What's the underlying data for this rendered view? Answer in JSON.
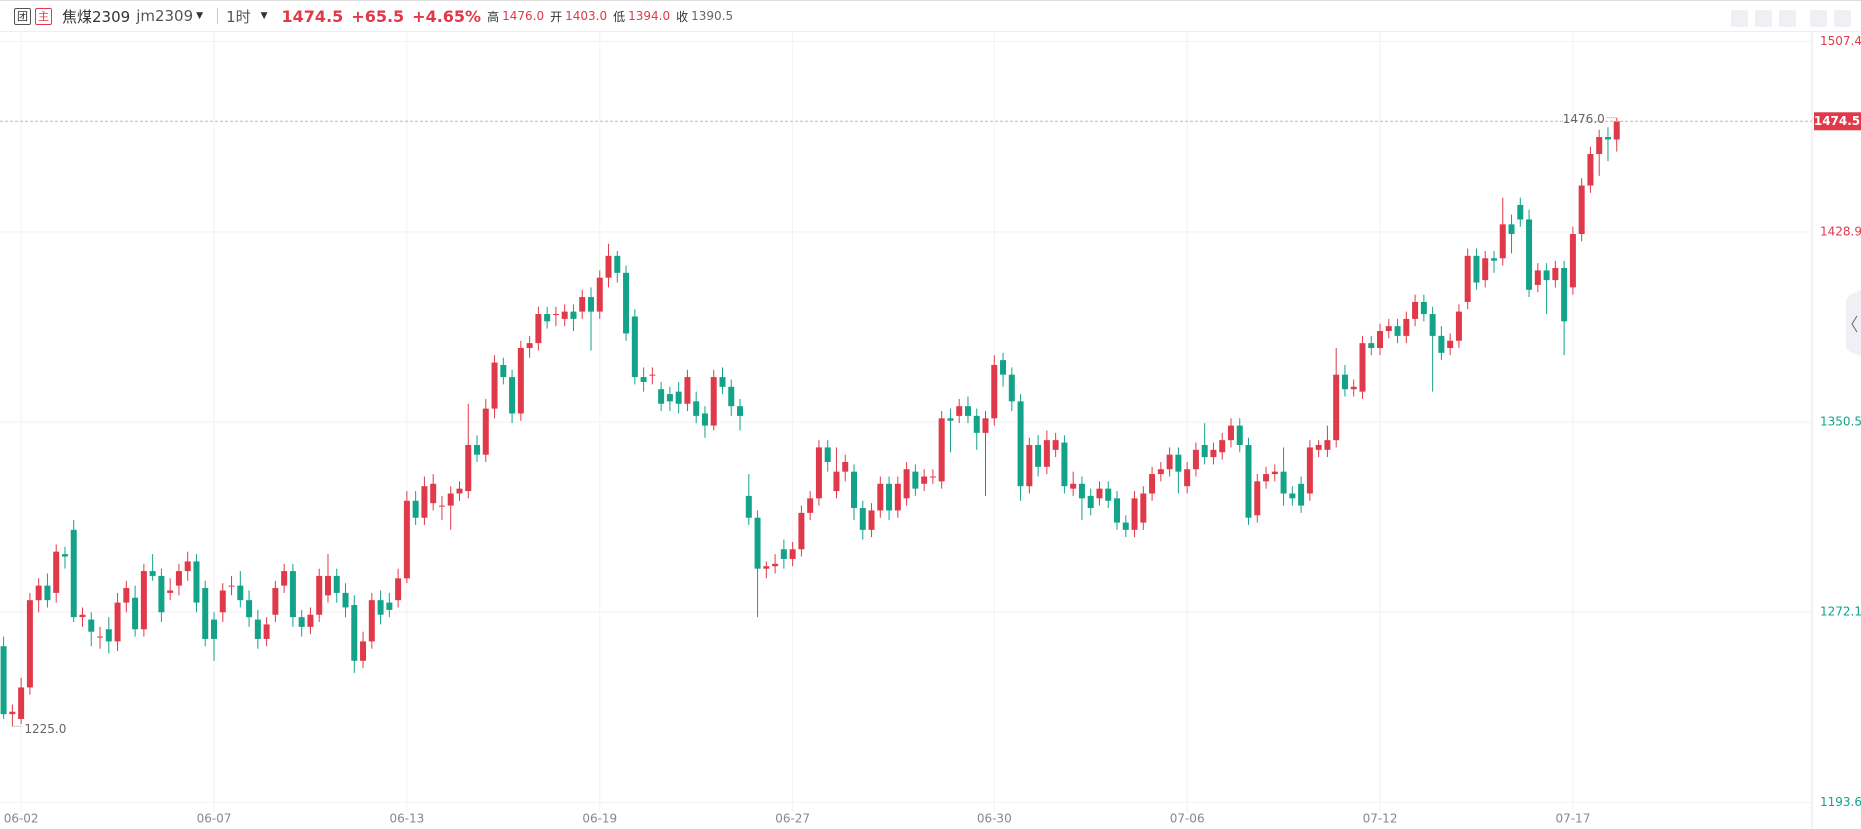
{
  "header": {
    "icon_group": "团",
    "icon_main": "主",
    "name": "焦煤2309",
    "code": "jm2309",
    "period": "1时",
    "price": "1474.5",
    "change": "+65.5",
    "pct": "+4.65%",
    "high_label": "高",
    "high": "1476.0",
    "open_label": "开",
    "open": "1403.0",
    "low_label": "低",
    "low": "1394.0",
    "close_label": "收",
    "close": "1390.5"
  },
  "chart_data": {
    "type": "candlestick",
    "up_color": "#e0394a",
    "down_color": "#13a388",
    "ylim": [
      1193.6,
      1507.4
    ],
    "yticks": [
      1507.4,
      1428.9,
      1350.5,
      1272.1,
      1193.6
    ],
    "ytick_colors": [
      "#e0394a",
      "#e0394a",
      "#13a388",
      "#13a388",
      "#13a388"
    ],
    "grid": true,
    "last_price": 1474.5,
    "max_marker": {
      "value": 1476,
      "label": "1476.0"
    },
    "min_marker": {
      "value": 1225,
      "label": "1225.0"
    },
    "categories": [
      null,
      null,
      "06-02",
      null,
      null,
      null,
      null,
      null,
      null,
      null,
      null,
      null,
      null,
      null,
      null,
      null,
      null,
      null,
      null,
      null,
      null,
      null,
      null,
      null,
      "06-07",
      null,
      null,
      null,
      null,
      null,
      null,
      null,
      null,
      null,
      null,
      null,
      null,
      null,
      null,
      null,
      null,
      null,
      null,
      null,
      null,
      null,
      "06-13",
      null,
      null,
      null,
      null,
      null,
      null,
      null,
      null,
      null,
      null,
      null,
      null,
      null,
      null,
      null,
      null,
      null,
      null,
      null,
      null,
      null,
      "06-19",
      null,
      null,
      null,
      null,
      null,
      null,
      null,
      null,
      null,
      null,
      null,
      null,
      null,
      null,
      null,
      null,
      null,
      null,
      null,
      null,
      null,
      "06-27",
      null,
      null,
      null,
      null,
      null,
      null,
      null,
      null,
      null,
      null,
      null,
      null,
      null,
      null,
      null,
      null,
      null,
      null,
      null,
      null,
      null,
      null,
      "06-30",
      null,
      null,
      null,
      null,
      null,
      null,
      null,
      null,
      null,
      null,
      null,
      null,
      null,
      null,
      null,
      null,
      null,
      null,
      null,
      null,
      null,
      "07-06",
      null,
      null,
      null,
      null,
      null,
      null,
      null,
      null,
      null,
      null,
      null,
      null,
      null,
      null,
      null,
      null,
      null,
      null,
      null,
      null,
      null,
      "07-12",
      null,
      null,
      null,
      null,
      null,
      null,
      null,
      null,
      null,
      null,
      null,
      null,
      null,
      null,
      null,
      null,
      null,
      null,
      null,
      null,
      null,
      "07-17",
      null,
      null,
      null,
      null,
      null
    ],
    "ohlc": [
      [
        1258,
        1262,
        1228,
        1230
      ],
      [
        1230,
        1234,
        1225,
        1231
      ],
      [
        1228,
        1245,
        1226,
        1241
      ],
      [
        1241,
        1280,
        1238,
        1277
      ],
      [
        1277,
        1286,
        1272,
        1283
      ],
      [
        1283,
        1288,
        1274,
        1277
      ],
      [
        1280,
        1300,
        1276,
        1297
      ],
      [
        1296,
        1299,
        1290,
        1295
      ],
      [
        1306,
        1310,
        1268,
        1270
      ],
      [
        1270,
        1274,
        1266,
        1271
      ],
      [
        1269,
        1272,
        1258,
        1264
      ],
      [
        1262,
        1266,
        1257,
        1262
      ],
      [
        1265,
        1270,
        1255,
        1260
      ],
      [
        1260,
        1280,
        1256,
        1276
      ],
      [
        1276,
        1285,
        1272,
        1282
      ],
      [
        1278,
        1283,
        1262,
        1265
      ],
      [
        1265,
        1292,
        1262,
        1289
      ],
      [
        1289,
        1296,
        1285,
        1287
      ],
      [
        1287,
        1290,
        1268,
        1272
      ],
      [
        1280,
        1286,
        1277,
        1281
      ],
      [
        1283,
        1292,
        1279,
        1289
      ],
      [
        1289,
        1297,
        1285,
        1293
      ],
      [
        1293,
        1296,
        1272,
        1276
      ],
      [
        1282,
        1285,
        1258,
        1261
      ],
      [
        1269,
        1272,
        1252,
        1261
      ],
      [
        1272,
        1284,
        1268,
        1281
      ],
      [
        1283,
        1287,
        1279,
        1283
      ],
      [
        1283,
        1289,
        1274,
        1277
      ],
      [
        1277,
        1281,
        1266,
        1270
      ],
      [
        1269,
        1273,
        1257,
        1261
      ],
      [
        1261,
        1270,
        1258,
        1267
      ],
      [
        1271,
        1285,
        1268,
        1282
      ],
      [
        1283,
        1292,
        1280,
        1289
      ],
      [
        1289,
        1292,
        1266,
        1270
      ],
      [
        1270,
        1273,
        1262,
        1266
      ],
      [
        1266,
        1274,
        1263,
        1271
      ],
      [
        1271,
        1290,
        1268,
        1287
      ],
      [
        1279,
        1296,
        1276,
        1287
      ],
      [
        1287,
        1290,
        1276,
        1280
      ],
      [
        1280,
        1284,
        1270,
        1274
      ],
      [
        1275,
        1279,
        1247,
        1252
      ],
      [
        1252,
        1264,
        1249,
        1260
      ],
      [
        1260,
        1280,
        1257,
        1277
      ],
      [
        1277,
        1281,
        1267,
        1271
      ],
      [
        1276,
        1280,
        1270,
        1273
      ],
      [
        1277,
        1290,
        1274,
        1286
      ],
      [
        1286,
        1322,
        1284,
        1318
      ],
      [
        1318,
        1322,
        1308,
        1311
      ],
      [
        1311,
        1328,
        1308,
        1324
      ],
      [
        1317,
        1329,
        1314,
        1325
      ],
      [
        1316,
        1320,
        1310,
        1316
      ],
      [
        1316,
        1324,
        1306,
        1321
      ],
      [
        1321,
        1326,
        1318,
        1323
      ],
      [
        1322,
        1358,
        1319,
        1341
      ],
      [
        1341,
        1345,
        1334,
        1337
      ],
      [
        1337,
        1360,
        1334,
        1356
      ],
      [
        1356,
        1378,
        1352,
        1375
      ],
      [
        1374,
        1377,
        1366,
        1369
      ],
      [
        1369,
        1372,
        1350,
        1354
      ],
      [
        1354,
        1384,
        1351,
        1381
      ],
      [
        1381,
        1386,
        1377,
        1383
      ],
      [
        1383,
        1398,
        1380,
        1395
      ],
      [
        1395,
        1398,
        1389,
        1392
      ],
      [
        1395,
        1398,
        1390,
        1395
      ],
      [
        1393,
        1399,
        1390,
        1396
      ],
      [
        1396,
        1399,
        1388,
        1393
      ],
      [
        1396,
        1405,
        1393,
        1402
      ],
      [
        1402,
        1406,
        1380,
        1396
      ],
      [
        1396,
        1413,
        1393,
        1410
      ],
      [
        1410,
        1424,
        1406,
        1419
      ],
      [
        1419,
        1421,
        1408,
        1412
      ],
      [
        1412,
        1415,
        1384,
        1387
      ],
      [
        1394,
        1397,
        1366,
        1369
      ],
      [
        1369,
        1373,
        1363,
        1367
      ],
      [
        1370,
        1373,
        1366,
        1370
      ],
      [
        1364,
        1367,
        1355,
        1358
      ],
      [
        1362,
        1365,
        1355,
        1359
      ],
      [
        1363,
        1367,
        1354,
        1358
      ],
      [
        1358,
        1372,
        1355,
        1369
      ],
      [
        1359,
        1363,
        1350,
        1353
      ],
      [
        1354,
        1357,
        1344,
        1349
      ],
      [
        1349,
        1372,
        1347,
        1369
      ],
      [
        1369,
        1373,
        1362,
        1365
      ],
      [
        1365,
        1368,
        1353,
        1357
      ],
      [
        1357,
        1360,
        1347,
        1353
      ],
      [
        1320,
        1329,
        1308,
        1311
      ],
      [
        1311,
        1314,
        1270,
        1290
      ],
      [
        1290,
        1293,
        1286,
        1291
      ],
      [
        1291,
        1296,
        1288,
        1292
      ],
      [
        1298,
        1302,
        1290,
        1294
      ],
      [
        1294,
        1301,
        1291,
        1298
      ],
      [
        1298,
        1316,
        1295,
        1313
      ],
      [
        1313,
        1322,
        1310,
        1319
      ],
      [
        1319,
        1343,
        1316,
        1340
      ],
      [
        1340,
        1343,
        1330,
        1334
      ],
      [
        1322,
        1340,
        1319,
        1330
      ],
      [
        1330,
        1337,
        1326,
        1334
      ],
      [
        1330,
        1333,
        1310,
        1315
      ],
      [
        1315,
        1318,
        1302,
        1306
      ],
      [
        1306,
        1317,
        1303,
        1314
      ],
      [
        1314,
        1328,
        1311,
        1325
      ],
      [
        1325,
        1328,
        1310,
        1314
      ],
      [
        1314,
        1328,
        1311,
        1325
      ],
      [
        1319,
        1334,
        1316,
        1331
      ],
      [
        1330,
        1333,
        1320,
        1323
      ],
      [
        1325,
        1331,
        1322,
        1328
      ],
      [
        1328,
        1331,
        1325,
        1328
      ],
      [
        1326,
        1355,
        1323,
        1352
      ],
      [
        1352,
        1356,
        1338,
        1351
      ],
      [
        1353,
        1360,
        1350,
        1357
      ],
      [
        1357,
        1361,
        1350,
        1353
      ],
      [
        1353,
        1356,
        1339,
        1346
      ],
      [
        1346,
        1355,
        1320,
        1352
      ],
      [
        1352,
        1378,
        1349,
        1374
      ],
      [
        1376,
        1379,
        1365,
        1370
      ],
      [
        1370,
        1373,
        1355,
        1359
      ],
      [
        1359,
        1362,
        1318,
        1324
      ],
      [
        1324,
        1344,
        1321,
        1341
      ],
      [
        1341,
        1345,
        1328,
        1332
      ],
      [
        1332,
        1347,
        1329,
        1343
      ],
      [
        1339,
        1346,
        1336,
        1343
      ],
      [
        1342,
        1345,
        1321,
        1324
      ],
      [
        1323,
        1330,
        1320,
        1325
      ],
      [
        1325,
        1328,
        1310,
        1319
      ],
      [
        1320,
        1323,
        1312,
        1315
      ],
      [
        1319,
        1326,
        1316,
        1323
      ],
      [
        1323,
        1326,
        1315,
        1318
      ],
      [
        1319,
        1322,
        1306,
        1309
      ],
      [
        1309,
        1312,
        1303,
        1306
      ],
      [
        1306,
        1322,
        1303,
        1319
      ],
      [
        1309,
        1324,
        1306,
        1321
      ],
      [
        1321,
        1332,
        1318,
        1329
      ],
      [
        1329,
        1334,
        1326,
        1331
      ],
      [
        1331,
        1340,
        1328,
        1337
      ],
      [
        1337,
        1340,
        1321,
        1330
      ],
      [
        1324,
        1334,
        1321,
        1331
      ],
      [
        1331,
        1342,
        1328,
        1339
      ],
      [
        1341,
        1350,
        1333,
        1336
      ],
      [
        1336,
        1342,
        1333,
        1339
      ],
      [
        1338,
        1346,
        1335,
        1343
      ],
      [
        1343,
        1352,
        1340,
        1349
      ],
      [
        1349,
        1352,
        1338,
        1341
      ],
      [
        1341,
        1344,
        1308,
        1311
      ],
      [
        1312,
        1329,
        1309,
        1326
      ],
      [
        1326,
        1332,
        1323,
        1329
      ],
      [
        1329,
        1333,
        1326,
        1330
      ],
      [
        1330,
        1340,
        1316,
        1321
      ],
      [
        1321,
        1324,
        1316,
        1319
      ],
      [
        1325,
        1328,
        1313,
        1316
      ],
      [
        1321,
        1343,
        1318,
        1340
      ],
      [
        1339,
        1343,
        1336,
        1341
      ],
      [
        1339,
        1349,
        1336,
        1343
      ],
      [
        1343,
        1381,
        1340,
        1370
      ],
      [
        1370,
        1374,
        1361,
        1364
      ],
      [
        1364,
        1368,
        1361,
        1365
      ],
      [
        1363,
        1386,
        1360,
        1383
      ],
      [
        1383,
        1386,
        1378,
        1381
      ],
      [
        1381,
        1391,
        1378,
        1388
      ],
      [
        1388,
        1393,
        1385,
        1390
      ],
      [
        1390,
        1393,
        1383,
        1386
      ],
      [
        1386,
        1396,
        1383,
        1393
      ],
      [
        1393,
        1403,
        1390,
        1400
      ],
      [
        1400,
        1403,
        1392,
        1395
      ],
      [
        1395,
        1398,
        1363,
        1386
      ],
      [
        1386,
        1390,
        1376,
        1379
      ],
      [
        1381,
        1387,
        1378,
        1384
      ],
      [
        1384,
        1399,
        1381,
        1396
      ],
      [
        1400,
        1422,
        1397,
        1419
      ],
      [
        1419,
        1422,
        1405,
        1408
      ],
      [
        1409,
        1421,
        1406,
        1418
      ],
      [
        1418,
        1421,
        1412,
        1417
      ],
      [
        1418,
        1443,
        1415,
        1432
      ],
      [
        1432,
        1436,
        1420,
        1428
      ],
      [
        1440,
        1443,
        1431,
        1434
      ],
      [
        1434,
        1438,
        1402,
        1405
      ],
      [
        1407,
        1416,
        1404,
        1413
      ],
      [
        1413,
        1416,
        1395,
        1409
      ],
      [
        1409,
        1417,
        1406,
        1414
      ],
      [
        1414,
        1417,
        1378,
        1392
      ],
      [
        1406,
        1431,
        1403,
        1428
      ],
      [
        1428,
        1451,
        1425,
        1448
      ],
      [
        1448,
        1464,
        1445,
        1461
      ],
      [
        1461,
        1471,
        1452,
        1468
      ],
      [
        1468,
        1472,
        1458,
        1467
      ],
      [
        1467,
        1476,
        1462,
        1474.5
      ]
    ]
  }
}
